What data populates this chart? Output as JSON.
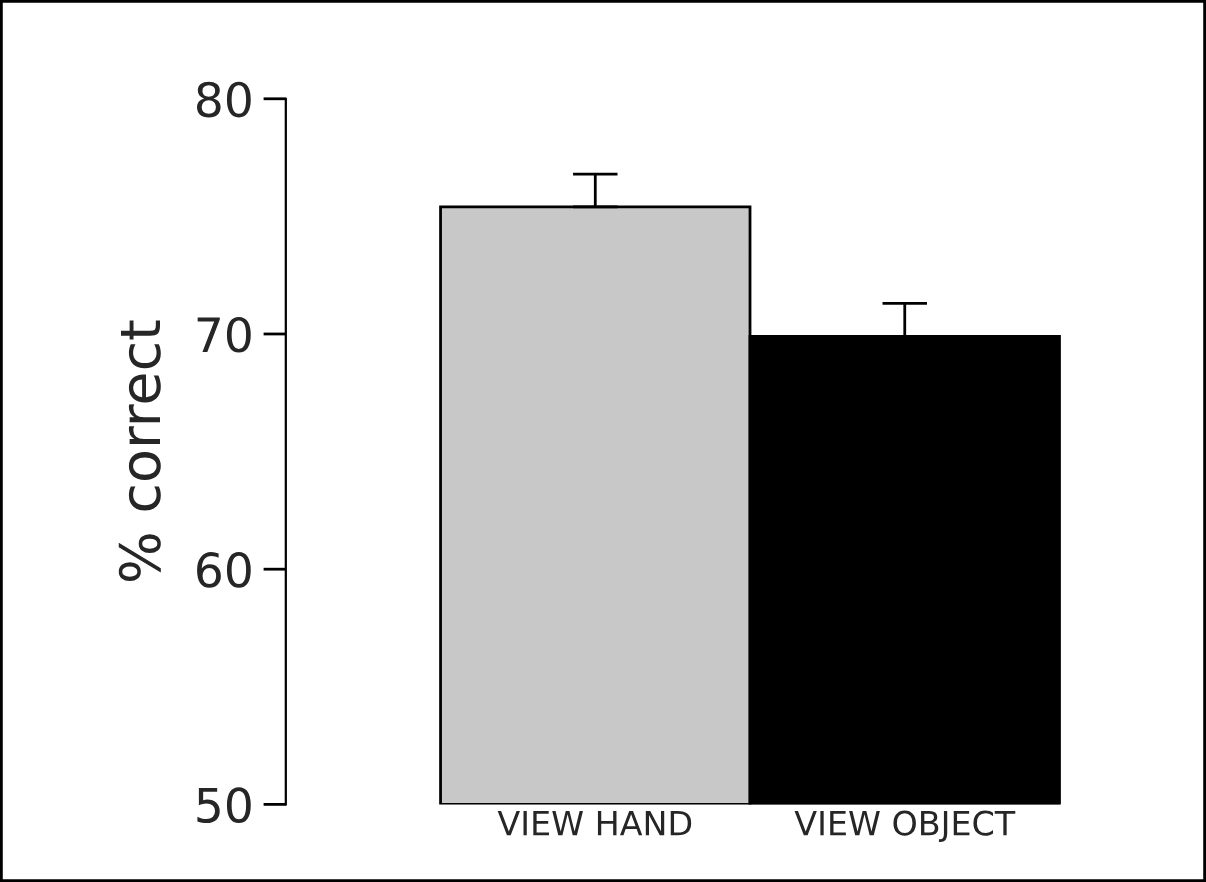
{
  "chart_data": {
    "type": "bar",
    "ylabel": "% correct",
    "categories": [
      "VIEW HAND",
      "VIEW OBJECT"
    ],
    "values": [
      75.4,
      69.9
    ],
    "colors": [
      "#c8c8c8",
      "#000000"
    ],
    "errors": [
      [
        75.4,
        76.8
      ],
      [
        69.9,
        71.3
      ]
    ],
    "ylim": [
      50,
      80
    ],
    "yticks": [
      50,
      60,
      70,
      80
    ],
    "grid": false
  }
}
